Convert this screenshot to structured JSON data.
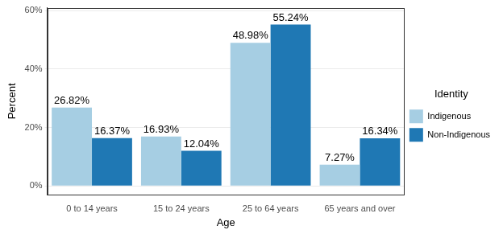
{
  "chart_data": {
    "type": "bar",
    "x_label": "Age",
    "y_label": "Percent",
    "legend_title": "Identity",
    "categories": [
      "0 to 14 years",
      "15 to 24 years",
      "25 to 64 years",
      "65 years and over"
    ],
    "series": [
      {
        "name": "Indigenous",
        "color": "#a6cee3",
        "values": [
          26.82,
          16.93,
          48.98,
          7.27
        ],
        "value_labels": [
          "26.82%",
          "16.93%",
          "48.98%",
          "7.27%"
        ]
      },
      {
        "name": "Non-Indigenous",
        "color": "#1f78b4",
        "values": [
          16.37,
          12.04,
          55.24,
          16.34
        ],
        "value_labels": [
          "16.37%",
          "12.04%",
          "55.24%",
          "16.34%"
        ]
      }
    ],
    "ylim": [
      -3,
      61
    ],
    "yticks": [
      {
        "value": 0,
        "label": "0%"
      },
      {
        "value": 20,
        "label": "20%"
      },
      {
        "value": 40,
        "label": "40%"
      },
      {
        "value": 60,
        "label": "60%"
      }
    ],
    "grid": true,
    "legend": "right",
    "data_labels": true
  }
}
